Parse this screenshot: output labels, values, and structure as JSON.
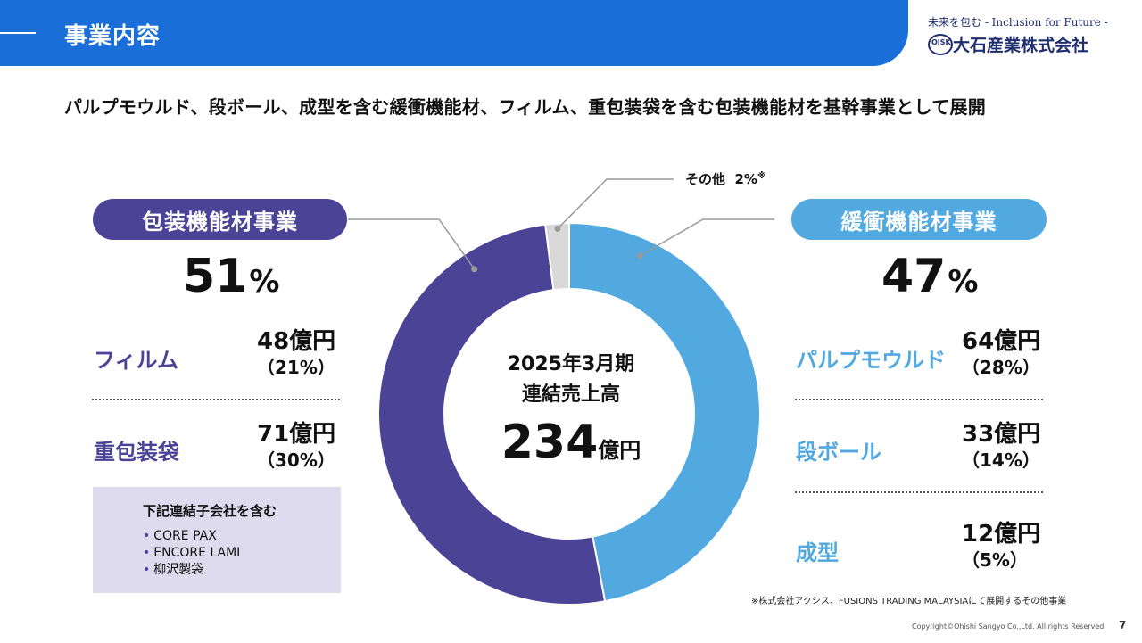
{
  "header": {
    "title": "事業内容"
  },
  "logo": {
    "tagline": "未来を包む - Inclusion for Future -",
    "mark": "OISK",
    "company": "大石産業株式会社"
  },
  "subtitle": "パルプモウルド、段ボール、成型を含む緩衝機能材、フィルム、重包装袋を含む包装機能材を基幹事業として展開",
  "left_segment": {
    "name": "包装機能材事業",
    "pct": "51",
    "pct_unit": "%",
    "items": [
      {
        "label": "フィルム",
        "amount": "48億円",
        "pct": "（21%）"
      },
      {
        "label": "重包装袋",
        "amount": "71億円",
        "pct": "（30%）"
      }
    ],
    "note": {
      "title": "下記連結子会社を含む",
      "items": [
        "CORE PAX",
        "ENCORE LAMI",
        "柳沢製袋"
      ],
      "bullet": "•"
    }
  },
  "right_segment": {
    "name": "緩衝機能材事業",
    "pct": "47",
    "pct_unit": "%",
    "items": [
      {
        "label": "パルプモウルド",
        "amount": "64億円",
        "pct": "（28%）"
      },
      {
        "label": "段ボール",
        "amount": "33億円",
        "pct": "（14%）"
      },
      {
        "label": "成型",
        "amount": "12億円",
        "pct": "（5%）"
      }
    ]
  },
  "center": {
    "line1": "2025年3月期",
    "line2": "連結売上高",
    "total": "234",
    "unit": "億円"
  },
  "other": {
    "label": "その他",
    "pct": "2%",
    "mark": "※"
  },
  "footnote": "※株式会社アクシス、FUSIONS TRADING MALAYSIAにて展開するその他事業",
  "copyright": "Copyright©Ohishi Sangyo Co.,Ltd. All rights Reserved",
  "page_number": "7",
  "chart_data": {
    "type": "pie",
    "categories": [
      "緩衝機能材事業",
      "包装機能材事業",
      "その他"
    ],
    "values": [
      47,
      51,
      2
    ],
    "colors": [
      "#52a9df",
      "#4b4496",
      "#d9d9d9"
    ],
    "donut": true
  }
}
